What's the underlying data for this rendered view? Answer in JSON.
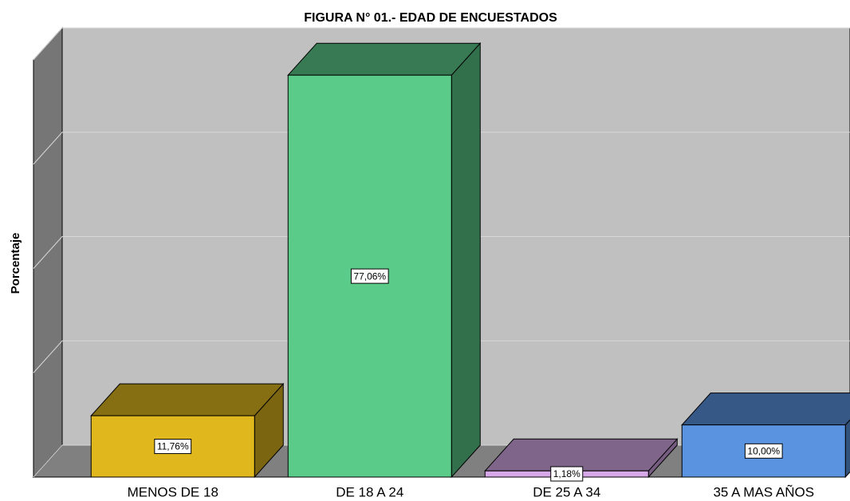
{
  "chart_data": {
    "type": "bar3d",
    "title": "FIGURA N° 01.- EDAD DE ENCUESTADOS",
    "ylabel": "Porcentaje",
    "categories": [
      "MENOS DE 18",
      "DE 18 A 24",
      "DE 25 A 34",
      "35 A MAS AÑOS"
    ],
    "values": [
      11.76,
      77.06,
      1.18,
      10.0
    ],
    "value_labels": [
      "11,76%",
      "77,06%",
      "1,18%",
      "10,00%"
    ],
    "colors": [
      "#e0b81e",
      "#5bcb8a",
      "#d6a8e8",
      "#5a93e0"
    ],
    "ylim": [
      0,
      80
    ],
    "yticks": [
      0,
      20,
      40,
      60,
      80
    ],
    "grid": true
  }
}
